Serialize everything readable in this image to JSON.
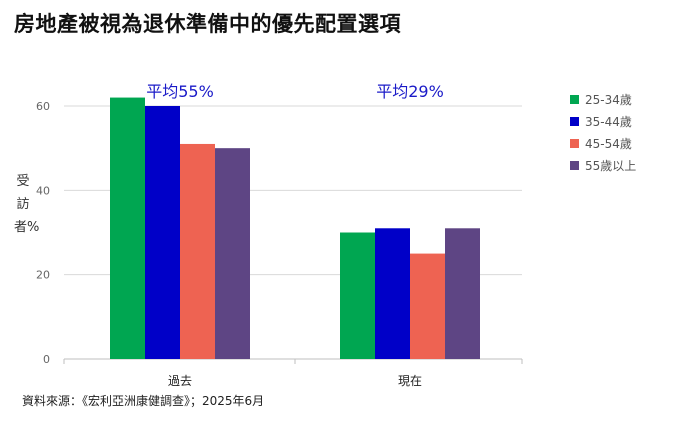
{
  "title": "房地產被視為退休準備中的優先配置選項",
  "source": "資料來源：《宏利亞洲康健調查》；2025年6月",
  "colors": {
    "series": [
      "#00a651",
      "#0000c8",
      "#ee6352",
      "#5e4584"
    ],
    "annotation": "#1a1ac8",
    "grid": "#d9d9d9",
    "axis_text": "#666666"
  },
  "chart_data": {
    "type": "bar",
    "title": "房地產被視為退休準備中的優先配置選項",
    "xlabel": "",
    "ylabel": "受訪者%",
    "categories": [
      "過去",
      "現在"
    ],
    "series": [
      {
        "name": "25-34歲",
        "values": [
          62,
          30
        ]
      },
      {
        "name": "35-44歲",
        "values": [
          60,
          31
        ]
      },
      {
        "name": "45-54歲",
        "values": [
          51,
          25
        ]
      },
      {
        "name": "55歲以上",
        "values": [
          50,
          31
        ]
      }
    ],
    "annotations": [
      "平均55%",
      "平均29%"
    ],
    "ylim": [
      0,
      60
    ],
    "yticks": [
      0,
      20,
      40,
      60
    ],
    "grid": true,
    "legend_position": "right"
  }
}
